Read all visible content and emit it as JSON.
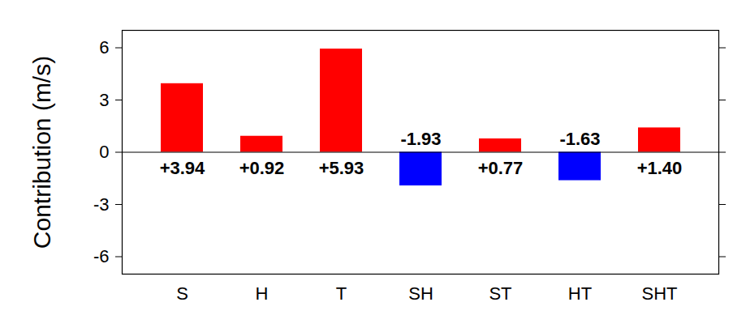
{
  "chart_data": {
    "type": "bar",
    "y_label": "Contribution (m/s)",
    "categories": [
      "S",
      "H",
      "T",
      "SH",
      "ST",
      "HT",
      "SHT"
    ],
    "values": [
      3.94,
      0.92,
      5.93,
      -1.93,
      0.77,
      -1.63,
      1.4
    ],
    "value_labels": [
      "+3.94",
      "+0.92",
      "+5.93",
      "-1.93",
      "+0.77",
      "-1.63",
      "+1.40"
    ],
    "colors": [
      "#ff0000",
      "#ff0000",
      "#ff0000",
      "#0000ff",
      "#ff0000",
      "#0000ff",
      "#ff0000"
    ],
    "ylim": [
      -7,
      7
    ],
    "yticks": [
      -6,
      -3,
      0,
      3,
      6
    ],
    "data_labels": true
  }
}
